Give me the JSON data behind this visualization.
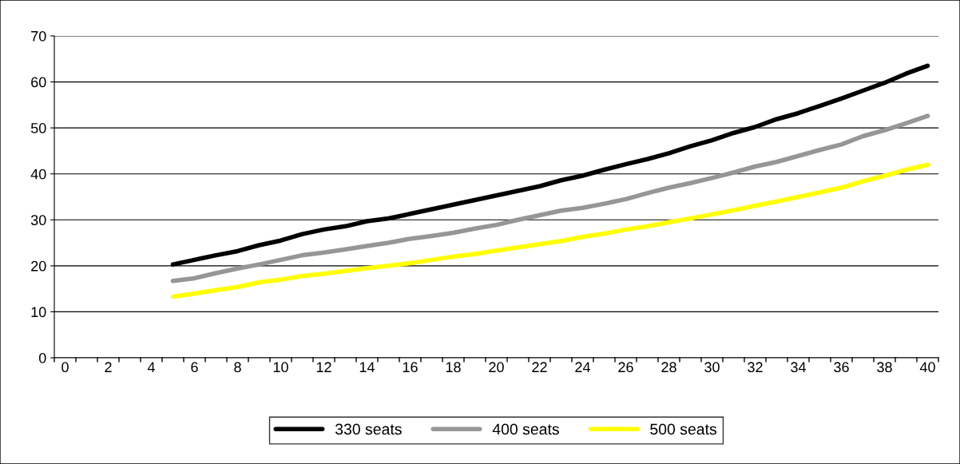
{
  "chart_data": {
    "type": "line",
    "categories": [
      "0",
      null,
      "2",
      null,
      "4",
      null,
      "6",
      null,
      "8",
      null,
      "10",
      null,
      "12",
      null,
      "14",
      null,
      "16",
      null,
      "18",
      null,
      "20",
      null,
      "22",
      null,
      "24",
      null,
      "26",
      null,
      "28",
      null,
      "30",
      null,
      "32",
      null,
      "34",
      null,
      "36",
      null,
      "38",
      null,
      "40"
    ],
    "series": [
      {
        "name": "330 seats",
        "color": "#000000",
        "values": [
          null,
          null,
          null,
          null,
          null,
          20.3,
          21.3,
          22.3,
          23.2,
          24.5,
          25.5,
          26.9,
          27.9,
          28.6,
          29.7,
          30.3,
          31.3,
          32.3,
          33.3,
          34.3,
          35.3,
          36.3,
          37.3,
          38.6,
          39.6,
          40.9,
          42.1,
          43.2,
          44.5,
          46.0,
          47.3,
          48.9,
          50.2,
          51.9,
          53.2,
          54.8,
          56.4,
          58.1,
          59.8,
          61.8,
          63.5
        ]
      },
      {
        "name": "400 seats",
        "color": "#969696",
        "values": [
          null,
          null,
          null,
          null,
          null,
          16.7,
          17.3,
          18.4,
          19.4,
          20.3,
          21.3,
          22.3,
          22.9,
          23.6,
          24.3,
          25.0,
          25.9,
          26.5,
          27.2,
          28.1,
          28.9,
          30.0,
          31.0,
          32.0,
          32.6,
          33.5,
          34.5,
          35.8,
          37.0,
          38.0,
          39.1,
          40.3,
          41.6,
          42.6,
          43.9,
          45.2,
          46.4,
          48.2,
          49.5,
          51.0,
          52.6
        ]
      },
      {
        "name": "500 seats",
        "color": "#ffff00",
        "values": [
          null,
          null,
          null,
          null,
          null,
          13.3,
          14.0,
          14.7,
          15.4,
          16.4,
          17.0,
          17.8,
          18.3,
          18.9,
          19.5,
          20.0,
          20.6,
          21.3,
          22.0,
          22.6,
          23.3,
          24.0,
          24.7,
          25.4,
          26.3,
          27.0,
          27.9,
          28.6,
          29.5,
          30.3,
          31.2,
          32.1,
          33.1,
          34.0,
          35.0,
          36.0,
          37.0,
          38.4,
          39.6,
          40.9,
          42.0
        ]
      }
    ],
    "ylim": [
      0,
      70
    ],
    "yticks": [
      0,
      10,
      20,
      30,
      40,
      50,
      60,
      70
    ],
    "grid": "y",
    "legend": "bottom",
    "marker": "none",
    "line_style": "solid"
  }
}
